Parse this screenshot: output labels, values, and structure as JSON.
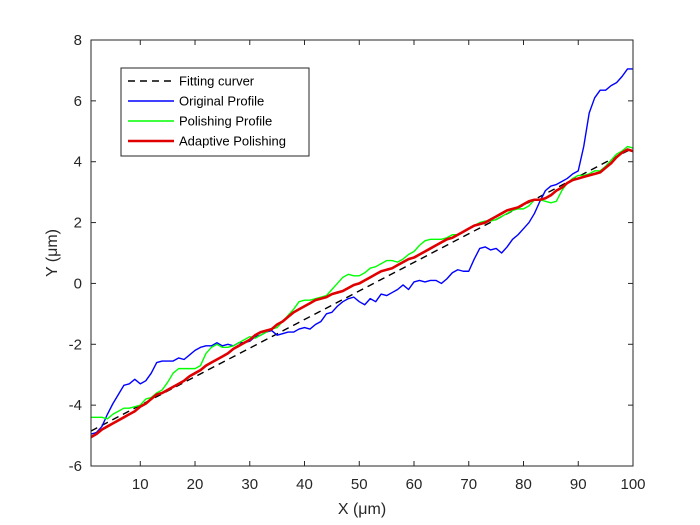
{
  "chart_data": {
    "type": "line",
    "title": "",
    "xlabel": "X (μm)",
    "ylabel": "Y (μm)",
    "xlim": [
      1,
      100
    ],
    "ylim": [
      -6,
      8
    ],
    "xticks": [
      10,
      20,
      30,
      40,
      50,
      60,
      70,
      80,
      90,
      100
    ],
    "yticks": [
      -6,
      -4,
      -2,
      0,
      2,
      4,
      6,
      8
    ],
    "grid": false,
    "legend_position": "top-left",
    "series": [
      {
        "name": "Fitting curver",
        "color": "#000000",
        "style": "dashed",
        "x": [
          1,
          100
        ],
        "y": [
          -4.85,
          4.45
        ]
      },
      {
        "name": "Original Profile",
        "color": "#0000ff",
        "style": "solid",
        "x": [
          1,
          2,
          3,
          4,
          5,
          6,
          7,
          8,
          9,
          10,
          11,
          12,
          13,
          14,
          15,
          16,
          17,
          18,
          19,
          20,
          21,
          22,
          23,
          24,
          25,
          26,
          27,
          28,
          29,
          30,
          31,
          32,
          33,
          34,
          35,
          36,
          37,
          38,
          39,
          40,
          41,
          42,
          43,
          44,
          45,
          46,
          47,
          48,
          49,
          50,
          51,
          52,
          53,
          54,
          55,
          56,
          57,
          58,
          59,
          60,
          61,
          62,
          63,
          64,
          65,
          66,
          67,
          68,
          69,
          70,
          71,
          72,
          73,
          74,
          75,
          76,
          77,
          78,
          79,
          80,
          81,
          82,
          83,
          84,
          85,
          86,
          87,
          88,
          89,
          90,
          91,
          92,
          93,
          94,
          95,
          96,
          97,
          98,
          99,
          100
        ],
        "y": [
          -4.95,
          -4.9,
          -4.7,
          -4.3,
          -3.95,
          -3.65,
          -3.35,
          -3.3,
          -3.15,
          -3.3,
          -3.2,
          -2.95,
          -2.6,
          -2.55,
          -2.55,
          -2.55,
          -2.45,
          -2.5,
          -2.35,
          -2.2,
          -2.1,
          -2.05,
          -2.05,
          -1.95,
          -2.05,
          -2.0,
          -2.05,
          -1.95,
          -1.95,
          -1.9,
          -1.75,
          -1.7,
          -1.6,
          -1.55,
          -1.7,
          -1.65,
          -1.6,
          -1.6,
          -1.5,
          -1.45,
          -1.5,
          -1.35,
          -1.25,
          -1.0,
          -0.95,
          -0.75,
          -0.6,
          -0.5,
          -0.45,
          -0.6,
          -0.7,
          -0.5,
          -0.6,
          -0.35,
          -0.4,
          -0.3,
          -0.2,
          -0.05,
          -0.2,
          0.05,
          0.1,
          0.05,
          0.1,
          0.1,
          0.0,
          0.15,
          0.35,
          0.45,
          0.4,
          0.4,
          0.8,
          1.15,
          1.2,
          1.1,
          1.15,
          1.0,
          1.2,
          1.45,
          1.6,
          1.8,
          2.0,
          2.3,
          2.7,
          3.05,
          3.2,
          3.25,
          3.35,
          3.45,
          3.6,
          3.7,
          4.5,
          5.6,
          6.1,
          6.35,
          6.35,
          6.5,
          6.6,
          6.8,
          7.05,
          7.05
        ]
      },
      {
        "name": "Polishing Profile",
        "color": "#00ff00",
        "style": "solid",
        "x": [
          1,
          2,
          3,
          4,
          5,
          6,
          7,
          8,
          9,
          10,
          11,
          12,
          13,
          14,
          15,
          16,
          17,
          18,
          19,
          20,
          21,
          22,
          23,
          24,
          25,
          26,
          27,
          28,
          29,
          30,
          31,
          32,
          33,
          34,
          35,
          36,
          37,
          38,
          39,
          40,
          41,
          42,
          43,
          44,
          45,
          46,
          47,
          48,
          49,
          50,
          51,
          52,
          53,
          54,
          55,
          56,
          57,
          58,
          59,
          60,
          61,
          62,
          63,
          64,
          65,
          66,
          67,
          68,
          69,
          70,
          71,
          72,
          73,
          74,
          75,
          76,
          77,
          78,
          79,
          80,
          81,
          82,
          83,
          84,
          85,
          86,
          87,
          88,
          89,
          90,
          91,
          92,
          93,
          94,
          95,
          96,
          97,
          98,
          99,
          100
        ],
        "y": [
          -4.4,
          -4.4,
          -4.4,
          -4.45,
          -4.3,
          -4.2,
          -4.1,
          -4.1,
          -4.05,
          -4.0,
          -3.8,
          -3.75,
          -3.6,
          -3.5,
          -3.25,
          -2.95,
          -2.8,
          -2.8,
          -2.8,
          -2.8,
          -2.7,
          -2.3,
          -2.1,
          -2.0,
          -2.1,
          -2.1,
          -2.05,
          -1.95,
          -1.85,
          -1.75,
          -1.8,
          -1.7,
          -1.6,
          -1.5,
          -1.45,
          -1.25,
          -1.05,
          -0.85,
          -0.6,
          -0.55,
          -0.55,
          -0.5,
          -0.45,
          -0.4,
          -0.2,
          0.0,
          0.2,
          0.3,
          0.25,
          0.25,
          0.35,
          0.5,
          0.55,
          0.65,
          0.75,
          0.75,
          0.7,
          0.8,
          0.95,
          1.05,
          1.25,
          1.4,
          1.45,
          1.45,
          1.45,
          1.5,
          1.6,
          1.6,
          1.7,
          1.8,
          1.9,
          2.0,
          2.05,
          2.05,
          2.1,
          2.2,
          2.3,
          2.4,
          2.45,
          2.45,
          2.55,
          2.75,
          2.75,
          2.7,
          2.65,
          2.7,
          3.05,
          3.3,
          3.45,
          3.55,
          3.55,
          3.6,
          3.7,
          3.7,
          3.85,
          4.05,
          4.25,
          4.35,
          4.5,
          4.45
        ]
      },
      {
        "name": "Adaptive Polishing",
        "color": "#e00000",
        "style": "solid",
        "x": [
          1,
          2,
          3,
          4,
          5,
          6,
          7,
          8,
          9,
          10,
          11,
          12,
          13,
          14,
          15,
          16,
          17,
          18,
          19,
          20,
          21,
          22,
          23,
          24,
          25,
          26,
          27,
          28,
          29,
          30,
          31,
          32,
          33,
          34,
          35,
          36,
          37,
          38,
          39,
          40,
          41,
          42,
          43,
          44,
          45,
          46,
          47,
          48,
          49,
          50,
          51,
          52,
          53,
          54,
          55,
          56,
          57,
          58,
          59,
          60,
          61,
          62,
          63,
          64,
          65,
          66,
          67,
          68,
          69,
          70,
          71,
          72,
          73,
          74,
          75,
          76,
          77,
          78,
          79,
          80,
          81,
          82,
          83,
          84,
          85,
          86,
          87,
          88,
          89,
          90,
          91,
          92,
          93,
          94,
          95,
          96,
          97,
          98,
          99,
          100
        ],
        "y": [
          -5.05,
          -4.95,
          -4.8,
          -4.7,
          -4.6,
          -4.5,
          -4.4,
          -4.3,
          -4.2,
          -4.05,
          -3.95,
          -3.8,
          -3.65,
          -3.6,
          -3.5,
          -3.4,
          -3.3,
          -3.2,
          -3.05,
          -2.95,
          -2.85,
          -2.7,
          -2.6,
          -2.5,
          -2.4,
          -2.3,
          -2.15,
          -2.05,
          -1.95,
          -1.85,
          -1.7,
          -1.6,
          -1.55,
          -1.5,
          -1.35,
          -1.25,
          -1.1,
          -0.95,
          -0.85,
          -0.75,
          -0.65,
          -0.55,
          -0.5,
          -0.45,
          -0.35,
          -0.3,
          -0.25,
          -0.15,
          -0.05,
          0.0,
          0.1,
          0.2,
          0.3,
          0.4,
          0.45,
          0.5,
          0.6,
          0.7,
          0.8,
          0.85,
          0.95,
          1.05,
          1.15,
          1.25,
          1.35,
          1.45,
          1.5,
          1.6,
          1.7,
          1.8,
          1.9,
          1.95,
          2.0,
          2.1,
          2.2,
          2.3,
          2.4,
          2.45,
          2.5,
          2.6,
          2.7,
          2.75,
          2.75,
          2.8,
          2.9,
          3.05,
          3.15,
          3.3,
          3.4,
          3.45,
          3.5,
          3.55,
          3.6,
          3.65,
          3.8,
          3.95,
          4.15,
          4.3,
          4.4,
          4.35
        ]
      }
    ]
  }
}
